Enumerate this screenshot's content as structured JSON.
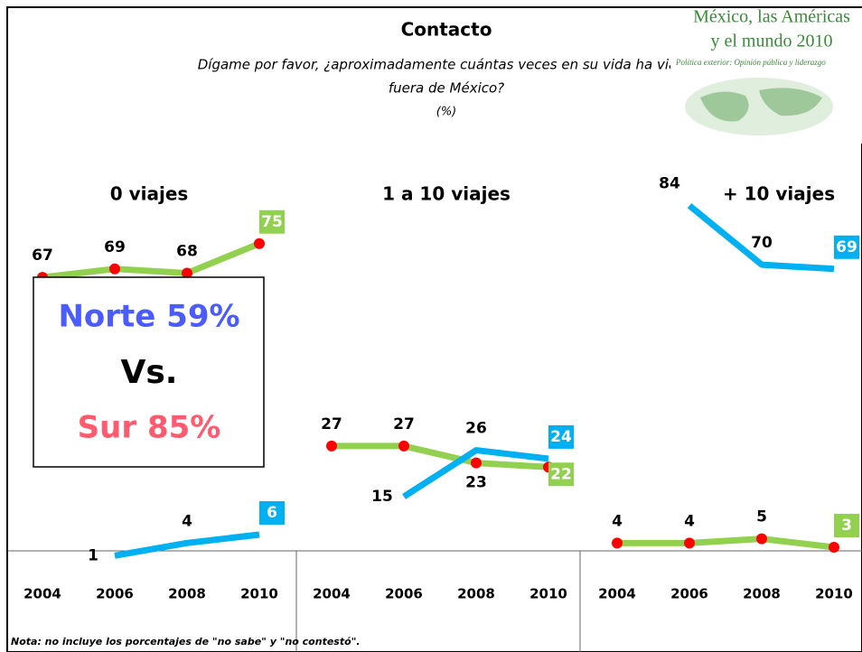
{
  "header": {
    "title": "Contacto",
    "subtitle": [
      "Dígame por favor, ¿aproximadamente cuántas veces en su vida ha viajado",
      "fuera de México?",
      "(%)"
    ],
    "logo": [
      "México, las Américas",
      "y el mundo 2010",
      "Política exterior: Opinión pública y liderazgo"
    ]
  },
  "chart_data": [
    {
      "type": "line",
      "title": "0 viajes",
      "categories": [
        "2004",
        "2006",
        "2008",
        "2010"
      ],
      "series": [
        {
          "color": "#92d050",
          "values": [
            67,
            69,
            68,
            75
          ]
        },
        {
          "color": "#00b0f0",
          "values": [
            null,
            1,
            4,
            6
          ]
        }
      ]
    },
    {
      "type": "line",
      "title": "1 a 10 viajes",
      "categories": [
        "2004",
        "2006",
        "2008",
        "2010"
      ],
      "series": [
        {
          "color": "#92d050",
          "values": [
            27,
            27,
            23,
            22
          ]
        },
        {
          "color": "#00b0f0",
          "values": [
            null,
            15,
            26,
            24
          ]
        }
      ]
    },
    {
      "type": "line",
      "title": "+ 10 viajes",
      "categories": [
        "2004",
        "2006",
        "2008",
        "2010"
      ],
      "series": [
        {
          "color": "#92d050",
          "values": [
            4,
            4,
            5,
            3
          ]
        },
        {
          "color": "#00b0f0",
          "values": [
            null,
            84,
            70,
            69
          ]
        }
      ]
    }
  ],
  "callout": {
    "north": "Norte 59%",
    "vs": "Vs.",
    "south": "Sur 85%"
  },
  "note": "Nota: no incluye los porcentajes de \"no sabe\" y \"no contestó\"."
}
